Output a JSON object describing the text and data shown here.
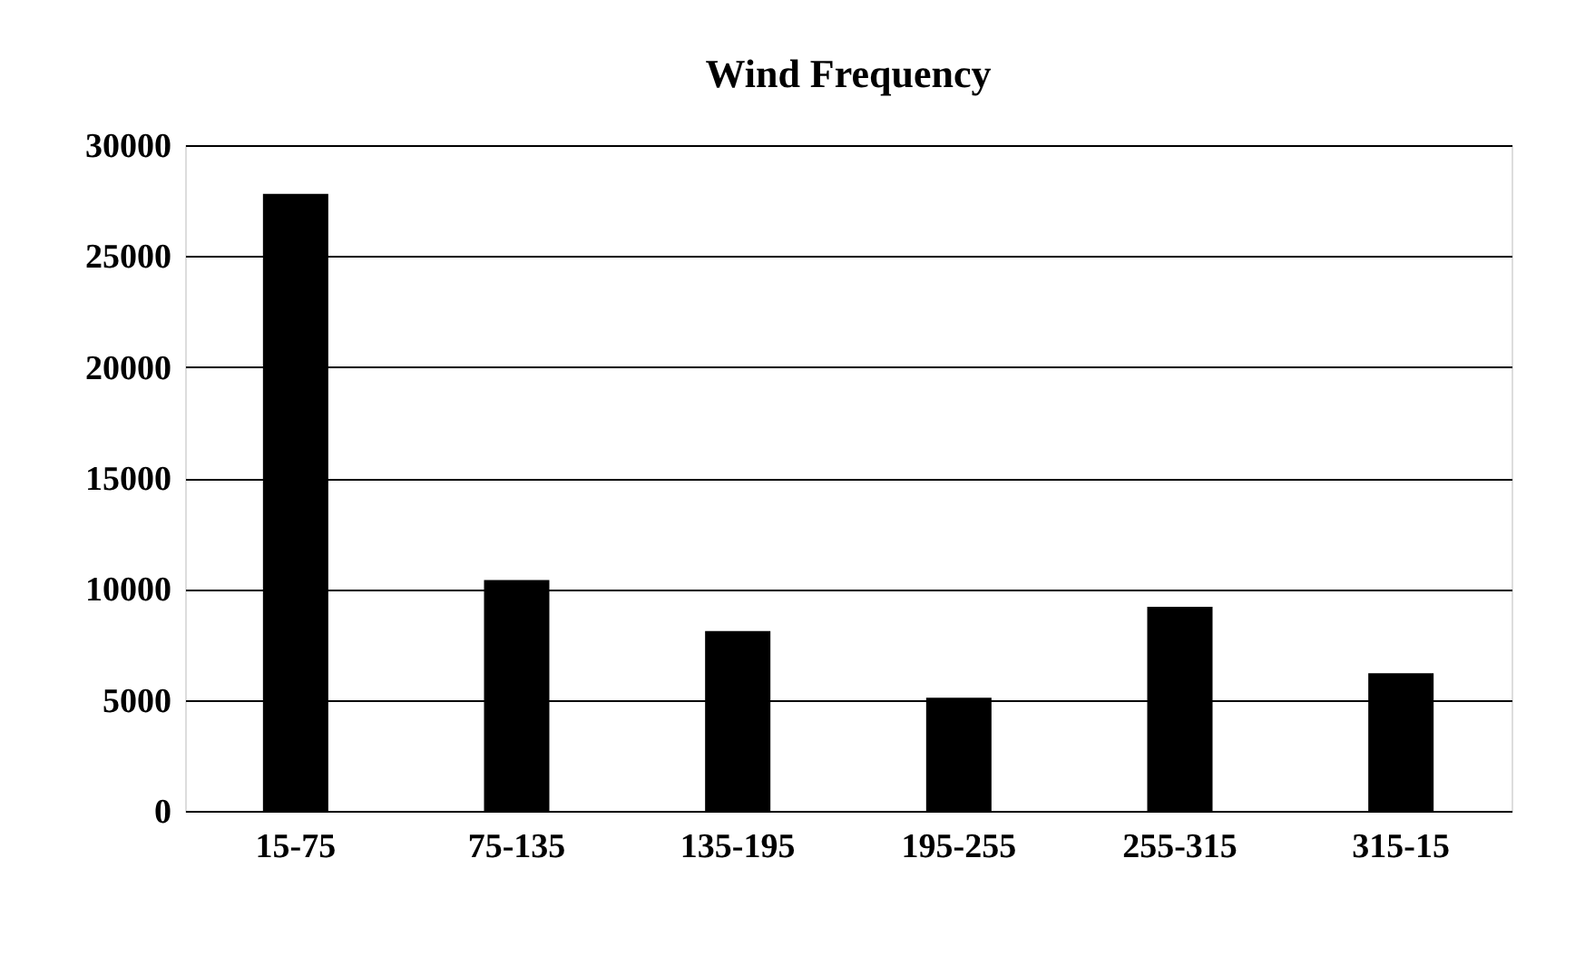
{
  "chart_data": {
    "type": "bar",
    "title": "Wind Frequency",
    "categories": [
      "15-75",
      "75-135",
      "135-195",
      "195-255",
      "255-315",
      "315-15"
    ],
    "values": [
      27800,
      10400,
      8100,
      5100,
      9200,
      6200
    ],
    "color": "#000000",
    "ylim": [
      0,
      30000
    ],
    "yticks": [
      0,
      5000,
      10000,
      15000,
      20000,
      25000,
      30000
    ],
    "grid": "y"
  }
}
